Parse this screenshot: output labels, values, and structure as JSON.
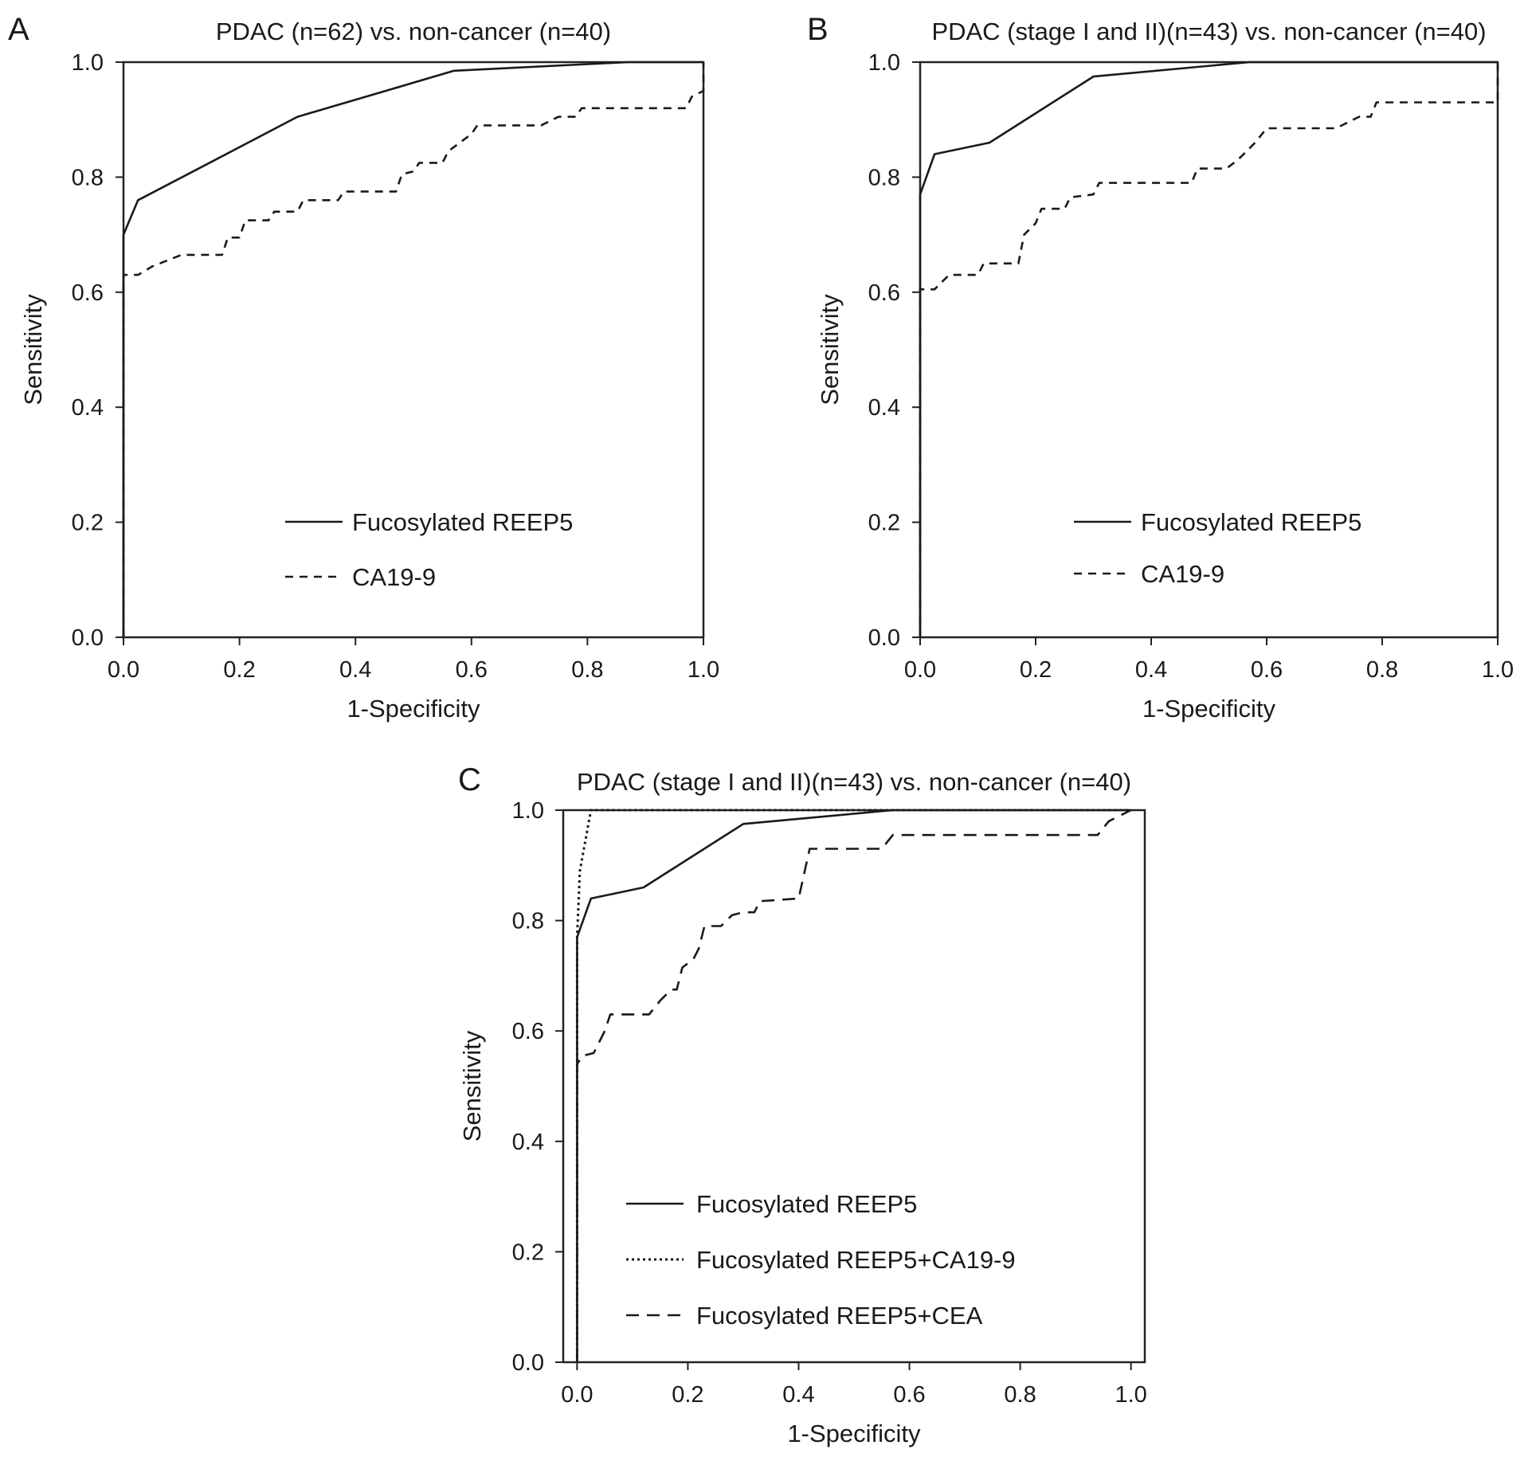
{
  "chart_data": [
    {
      "panel": "A",
      "type": "line",
      "title": "PDAC (n=62) vs. non-cancer (n=40)",
      "xlabel": "1-Specificity",
      "ylabel": "Sensitivity",
      "xlim": [
        0,
        1
      ],
      "ylim": [
        0,
        1
      ],
      "xticks": [
        "0.0",
        "0.2",
        "0.4",
        "0.6",
        "0.8",
        "1.0"
      ],
      "yticks": [
        "0.0",
        "0.2",
        "0.4",
        "0.6",
        "0.8",
        "1.0"
      ],
      "legend_position": "lower-center",
      "series": [
        {
          "name": "Fucosylated REEP5",
          "style": "solid",
          "points": [
            [
              0,
              0
            ],
            [
              0,
              0.7
            ],
            [
              0.025,
              0.76
            ],
            [
              0.12,
              0.81
            ],
            [
              0.3,
              0.905
            ],
            [
              0.57,
              0.985
            ],
            [
              0.87,
              1.0
            ],
            [
              1.0,
              1.0
            ]
          ]
        },
        {
          "name": "CA19-9",
          "style": "dashed",
          "points": [
            [
              0,
              0
            ],
            [
              0,
              0.63
            ],
            [
              0.025,
              0.63
            ],
            [
              0.05,
              0.645
            ],
            [
              0.1,
              0.665
            ],
            [
              0.17,
              0.665
            ],
            [
              0.18,
              0.695
            ],
            [
              0.2,
              0.695
            ],
            [
              0.21,
              0.725
            ],
            [
              0.25,
              0.725
            ],
            [
              0.26,
              0.74
            ],
            [
              0.3,
              0.74
            ],
            [
              0.31,
              0.76
            ],
            [
              0.37,
              0.76
            ],
            [
              0.38,
              0.775
            ],
            [
              0.47,
              0.775
            ],
            [
              0.48,
              0.805
            ],
            [
              0.5,
              0.81
            ],
            [
              0.51,
              0.825
            ],
            [
              0.55,
              0.825
            ],
            [
              0.56,
              0.845
            ],
            [
              0.58,
              0.86
            ],
            [
              0.6,
              0.875
            ],
            [
              0.61,
              0.89
            ],
            [
              0.72,
              0.89
            ],
            [
              0.75,
              0.905
            ],
            [
              0.78,
              0.905
            ],
            [
              0.79,
              0.92
            ],
            [
              0.97,
              0.92
            ],
            [
              0.98,
              0.94
            ],
            [
              1.0,
              0.95
            ],
            [
              1.0,
              1.0
            ]
          ]
        }
      ]
    },
    {
      "panel": "B",
      "type": "line",
      "title": "PDAC (stage I and II)(n=43) vs. non-cancer (n=40)",
      "xlabel": "1-Specificity",
      "ylabel": "Sensitivity",
      "xlim": [
        0,
        1
      ],
      "ylim": [
        0,
        1
      ],
      "xticks": [
        "0.0",
        "0.2",
        "0.4",
        "0.6",
        "0.8",
        "1.0"
      ],
      "yticks": [
        "0.0",
        "0.2",
        "0.4",
        "0.6",
        "0.8",
        "1.0"
      ],
      "legend_position": "lower-center",
      "series": [
        {
          "name": "Fucosylated REEP5",
          "style": "solid",
          "points": [
            [
              0,
              0
            ],
            [
              0,
              0.77
            ],
            [
              0.025,
              0.84
            ],
            [
              0.12,
              0.86
            ],
            [
              0.3,
              0.975
            ],
            [
              0.57,
              1.0
            ],
            [
              1.0,
              1.0
            ]
          ]
        },
        {
          "name": "CA19-9",
          "style": "dashed",
          "points": [
            [
              0,
              0
            ],
            [
              0,
              0.605
            ],
            [
              0.025,
              0.605
            ],
            [
              0.05,
              0.63
            ],
            [
              0.1,
              0.63
            ],
            [
              0.11,
              0.65
            ],
            [
              0.17,
              0.65
            ],
            [
              0.18,
              0.7
            ],
            [
              0.2,
              0.72
            ],
            [
              0.21,
              0.745
            ],
            [
              0.25,
              0.745
            ],
            [
              0.26,
              0.765
            ],
            [
              0.3,
              0.77
            ],
            [
              0.31,
              0.79
            ],
            [
              0.47,
              0.79
            ],
            [
              0.48,
              0.815
            ],
            [
              0.53,
              0.815
            ],
            [
              0.55,
              0.83
            ],
            [
              0.58,
              0.86
            ],
            [
              0.6,
              0.885
            ],
            [
              0.72,
              0.885
            ],
            [
              0.76,
              0.905
            ],
            [
              0.78,
              0.905
            ],
            [
              0.79,
              0.93
            ],
            [
              1.0,
              0.93
            ],
            [
              1.0,
              1.0
            ]
          ]
        }
      ]
    },
    {
      "panel": "C",
      "type": "line",
      "title": "PDAC (stage I and II)(n=43) vs. non-cancer (n=40)",
      "xlabel": "1-Specificity",
      "ylabel": "Sensitivity",
      "xlim": [
        -0.025,
        1.025
      ],
      "ylim": [
        0,
        1
      ],
      "xticks": [
        "0.0",
        "0.2",
        "0.4",
        "0.6",
        "0.8",
        "1.0"
      ],
      "yticks": [
        "0.0",
        "0.2",
        "0.4",
        "0.6",
        "0.8",
        "1.0"
      ],
      "legend_position": "lower-center",
      "series": [
        {
          "name": "Fucosylated REEP5",
          "style": "solid",
          "points": [
            [
              0,
              0
            ],
            [
              0,
              0.77
            ],
            [
              0.025,
              0.84
            ],
            [
              0.12,
              0.86
            ],
            [
              0.3,
              0.975
            ],
            [
              0.57,
              1.0
            ],
            [
              1.0,
              1.0
            ]
          ]
        },
        {
          "name": "Fucosylated REEP5+CA19-9",
          "style": "dotted",
          "points": [
            [
              0,
              0
            ],
            [
              0,
              0.77
            ],
            [
              0.005,
              0.89
            ],
            [
              0.025,
              1.0
            ],
            [
              0.05,
              1.0
            ],
            [
              1.0,
              1.0
            ]
          ]
        },
        {
          "name": "Fucosylated REEP5+CEA",
          "style": "longdash",
          "points": [
            [
              0,
              0
            ],
            [
              0,
              0.54
            ],
            [
              0.01,
              0.555
            ],
            [
              0.03,
              0.56
            ],
            [
              0.04,
              0.58
            ],
            [
              0.05,
              0.6
            ],
            [
              0.06,
              0.63
            ],
            [
              0.13,
              0.63
            ],
            [
              0.15,
              0.655
            ],
            [
              0.17,
              0.675
            ],
            [
              0.18,
              0.675
            ],
            [
              0.19,
              0.715
            ],
            [
              0.21,
              0.73
            ],
            [
              0.22,
              0.75
            ],
            [
              0.23,
              0.79
            ],
            [
              0.26,
              0.79
            ],
            [
              0.28,
              0.81
            ],
            [
              0.3,
              0.815
            ],
            [
              0.32,
              0.815
            ],
            [
              0.33,
              0.835
            ],
            [
              0.4,
              0.84
            ],
            [
              0.41,
              0.885
            ],
            [
              0.42,
              0.93
            ],
            [
              0.55,
              0.93
            ],
            [
              0.57,
              0.955
            ],
            [
              0.94,
              0.955
            ],
            [
              0.96,
              0.98
            ],
            [
              1.0,
              1.0
            ]
          ]
        }
      ]
    }
  ],
  "panel_titles": {
    "A": "PDAC (n=62) vs. non-cancer (n=40)",
    "B": "PDAC (stage I and II)(n=43) vs. non-cancer (n=40)",
    "C": "PDAC (stage I and II)(n=43) vs. non-cancer (n=40)"
  },
  "colors": {
    "line": "#1a1a1a",
    "reference": "#aaaaaa",
    "background": "#ffffff"
  }
}
